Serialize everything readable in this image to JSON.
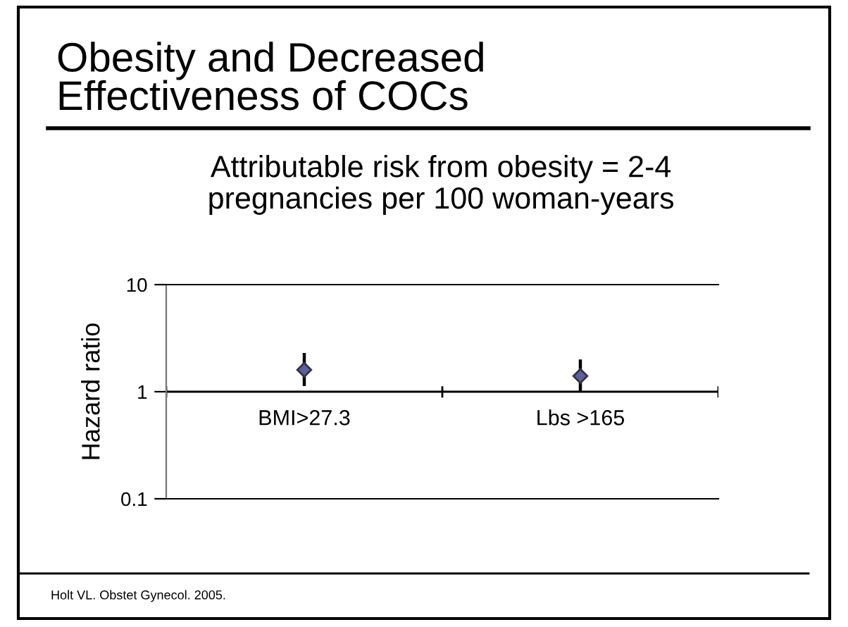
{
  "chart_data": {
    "type": "scatter",
    "title": "Obesity and Decreased\nEffectiveness of COCs",
    "subtitle": "Attributable risk from obesity = 2-4\npregnancies per 100 woman-years",
    "ylabel": "Hazard ratio",
    "categories": [
      "BMI>27.3",
      "Lbs >165"
    ],
    "series": [
      {
        "color": "#5c6199",
        "values": [
          1.6,
          1.4
        ],
        "errors": [
          [
            1.13,
            2.3
          ],
          [
            1.0,
            2.0
          ]
        ]
      }
    ],
    "log": "y",
    "ylim": [
      0.1,
      10
    ],
    "yticks": [
      0.1,
      1,
      10
    ],
    "grid": false,
    "marker": "diamond",
    "annotations": [
      "Holt VL. Obstet Gynecol. 2005."
    ]
  }
}
